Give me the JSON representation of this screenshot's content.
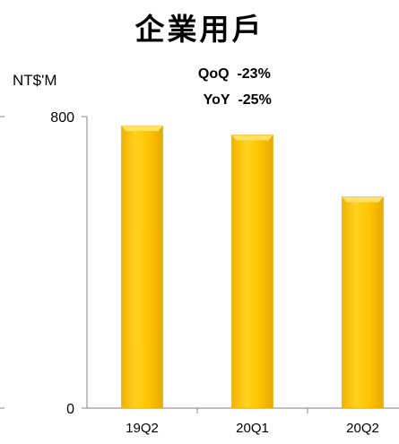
{
  "chart_data": {
    "type": "bar",
    "title": "企業用戶",
    "annotations": [
      {
        "label": "QoQ",
        "value": "-23%"
      },
      {
        "label": "YoY",
        "value": "-25%"
      }
    ],
    "ylabel": "NT$'M",
    "categories": [
      "19Q2",
      "20Q1",
      "20Q2"
    ],
    "values": [
      775,
      750,
      580
    ],
    "ylim": [
      0,
      800
    ],
    "yticks": [
      0,
      800
    ],
    "grid": false,
    "colors": {
      "bar": "#FFC400",
      "bar_highlight": "#FFE066",
      "bar_shadow": "#E0A800",
      "axis": "#999999"
    }
  }
}
